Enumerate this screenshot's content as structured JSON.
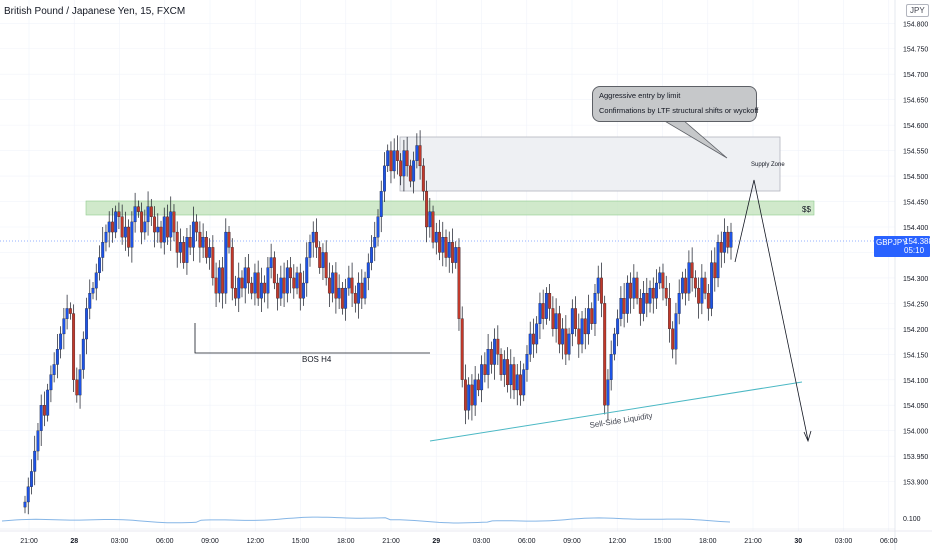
{
  "header": {
    "title": "British Pound / Japanese Yen, 15, FXCM",
    "currency": "JPY"
  },
  "price_label": {
    "symbol": "GBPJPY",
    "price": "154.388",
    "countdown": "05:10"
  },
  "annotations": {
    "callout_line1": "Aggressive entry by limit",
    "callout_line2": "Confirmations by LTF structural shifts or wyckoff",
    "supply_zone": "Supply Zone",
    "ss": "$$",
    "bos": "BOS H4",
    "ssl": "Sell-Side Liquidity"
  },
  "colors": {
    "up": "#1e53e5",
    "down": "#c0392b",
    "wick": "#131722",
    "grid": "#f0f3fa",
    "zone_green": "#a9d7a2",
    "zone_gray": "#eef0f3",
    "trendline": "#4bb8c4",
    "indicator": "#86b6e6",
    "price_line": "#2962ff"
  },
  "chart_data": {
    "type": "candlestick",
    "title": "British Pound / Japanese Yen, 15, FXCM",
    "ylim": [
      153.86,
      154.83
    ],
    "y_ticks": [
      "154.800",
      "154.750",
      "154.700",
      "154.650",
      "154.600",
      "154.550",
      "154.500",
      "154.450",
      "154.400",
      "154.350",
      "154.300",
      "154.250",
      "154.200",
      "154.150",
      "154.100",
      "154.050",
      "154.000",
      "153.950",
      "153.900"
    ],
    "x_ticks": [
      "21:00",
      "28",
      "03:00",
      "06:00",
      "09:00",
      "12:00",
      "15:00",
      "18:00",
      "21:00",
      "29",
      "03:00",
      "06:00",
      "09:00",
      "12:00",
      "15:00",
      "18:00",
      "21:00",
      "30",
      "03:00",
      "06:00"
    ],
    "indicator_label": "0.100",
    "last_price": 154.388,
    "closes": [
      153.86,
      153.89,
      153.92,
      153.96,
      154.0,
      154.05,
      154.03,
      154.08,
      154.11,
      154.13,
      154.16,
      154.19,
      154.22,
      154.24,
      154.23,
      154.1,
      154.07,
      154.12,
      154.18,
      154.24,
      154.27,
      154.28,
      154.31,
      154.34,
      154.37,
      154.39,
      154.41,
      154.39,
      154.43,
      154.42,
      154.38,
      154.4,
      154.36,
      154.41,
      154.44,
      154.43,
      154.39,
      154.41,
      154.44,
      154.42,
      154.39,
      154.4,
      154.37,
      154.42,
      154.38,
      154.43,
      154.39,
      154.35,
      154.37,
      154.33,
      154.38,
      154.36,
      154.41,
      154.39,
      154.36,
      154.38,
      154.34,
      154.36,
      154.3,
      154.27,
      154.32,
      154.27,
      154.39,
      154.36,
      154.28,
      154.26,
      154.3,
      154.28,
      154.32,
      154.29,
      154.27,
      154.31,
      154.26,
      154.29,
      154.27,
      154.32,
      154.34,
      154.29,
      154.26,
      154.3,
      154.27,
      154.32,
      154.3,
      154.28,
      154.31,
      154.26,
      154.29,
      154.34,
      154.37,
      154.39,
      154.36,
      154.32,
      154.35,
      154.3,
      154.27,
      154.31,
      154.26,
      154.28,
      154.24,
      154.28,
      154.3,
      154.27,
      154.25,
      154.29,
      154.26,
      154.3,
      154.33,
      154.36,
      154.38,
      154.42,
      154.47,
      154.52,
      154.55,
      154.51,
      154.55,
      154.53,
      154.5,
      154.55,
      154.52,
      154.49,
      154.53,
      154.56,
      154.52,
      154.47,
      154.4,
      154.43,
      154.37,
      154.39,
      154.35,
      154.38,
      154.34,
      154.37,
      154.33,
      154.36,
      154.22,
      154.1,
      154.04,
      154.09,
      154.05,
      154.1,
      154.08,
      154.13,
      154.11,
      154.16,
      154.13,
      154.18,
      154.15,
      154.11,
      154.14,
      154.09,
      154.13,
      154.08,
      154.11,
      154.07,
      154.12,
      154.15,
      154.19,
      154.17,
      154.21,
      154.25,
      154.22,
      154.27,
      154.24,
      154.2,
      154.23,
      154.17,
      154.2,
      154.15,
      154.19,
      154.24,
      154.2,
      154.17,
      154.22,
      154.19,
      154.24,
      154.21,
      154.27,
      154.3,
      154.25,
      154.05,
      154.1,
      154.15,
      154.19,
      154.22,
      154.26,
      154.23,
      154.29,
      154.26,
      154.3,
      154.26,
      154.23,
      154.27,
      154.25,
      154.28,
      154.26,
      154.29,
      154.31,
      154.28,
      154.26,
      154.2,
      154.16,
      154.23,
      154.27,
      154.3,
      154.27,
      154.33,
      154.3,
      154.28,
      154.25,
      154.3,
      154.27,
      154.24,
      154.33,
      154.3,
      154.37,
      154.35,
      154.39,
      154.36,
      154.39
    ]
  }
}
